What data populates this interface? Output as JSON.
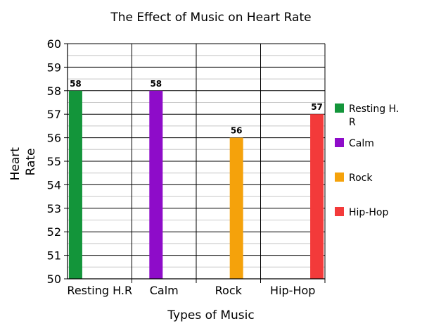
{
  "chart_data": {
    "type": "bar",
    "title": "The Effect of Music on Heart Rate",
    "xlabel": "Types of Music",
    "ylabel_lines": [
      "Heart",
      "Rate"
    ],
    "categories": [
      "Resting H.R",
      "Calm",
      "Rock",
      "Hip-Hop"
    ],
    "series": [
      {
        "name": "Resting H.R",
        "values": [
          58,
          null,
          null,
          null
        ],
        "color": "#13953a"
      },
      {
        "name": "Calm",
        "values": [
          null,
          58,
          null,
          null
        ],
        "color": "#8e0cc9"
      },
      {
        "name": "Rock",
        "values": [
          null,
          null,
          56,
          null
        ],
        "color": "#f5a20b"
      },
      {
        "name": "Hip-Hop",
        "values": [
          null,
          null,
          null,
          57
        ],
        "color": "#f33a3a"
      }
    ],
    "legend_labels": [
      [
        "Resting H.",
        "R"
      ],
      [
        "Calm"
      ],
      [
        "Rock"
      ],
      [
        "Hip-Hop"
      ]
    ],
    "ylim": [
      50,
      60
    ],
    "yticks": [
      50,
      51,
      52,
      53,
      54,
      55,
      56,
      57,
      58,
      59,
      60
    ],
    "grid": true,
    "legend": "right"
  }
}
